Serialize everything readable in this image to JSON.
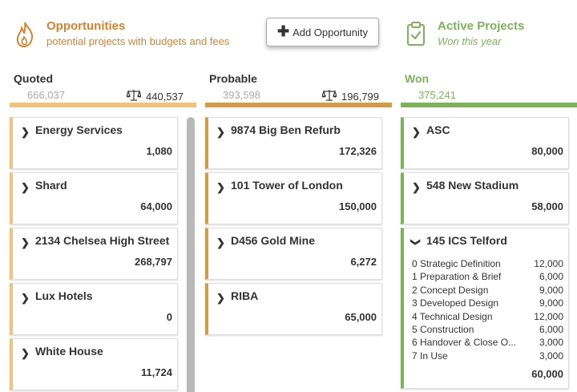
{
  "header": {
    "opportunities_title": "Opportunities",
    "opportunities_subtitle": "potential projects with budgets and fees",
    "add_button_label": "Add Opportunity",
    "active_title": "Active Projects",
    "active_subtitle": "Won this year"
  },
  "columns": {
    "quoted": {
      "name": "Quoted",
      "potential": "666,037",
      "total": "440,537",
      "color": "#f0c27a"
    },
    "probable": {
      "name": "Probable",
      "potential": "393,598",
      "total": "196,799",
      "color": "#d49a45"
    },
    "won": {
      "name": "Won",
      "total": "375,241",
      "color": "#7cb35a"
    }
  },
  "quoted_cards": [
    {
      "name": "Energy Services",
      "value": "1,080"
    },
    {
      "name": "Shard",
      "value": "64,000"
    },
    {
      "name": "2134 Chelsea High Street",
      "value": "268,797"
    },
    {
      "name": "Lux Hotels",
      "value": "0"
    },
    {
      "name": "White House",
      "value": "11,724"
    }
  ],
  "probable_cards": [
    {
      "name": "9874 Big Ben Refurb",
      "value": "172,326"
    },
    {
      "name": "101 Tower of London",
      "value": "150,000"
    },
    {
      "name": "D456 Gold Mine",
      "value": "6,272"
    },
    {
      "name": "RIBA",
      "value": "65,000"
    }
  ],
  "won_cards": [
    {
      "name": "ASC",
      "value": "80,000"
    },
    {
      "name": "548 New Stadium",
      "value": "58,000"
    },
    {
      "name": "145 ICS Telford",
      "value": "60,000",
      "stages": [
        {
          "name": "0 Strategic Definition",
          "value": "12,000"
        },
        {
          "name": "1 Preparation & Brief",
          "value": "6,000"
        },
        {
          "name": "2 Concept Design",
          "value": "9,000"
        },
        {
          "name": "3 Developed Design",
          "value": "9,000"
        },
        {
          "name": "4 Technical Design",
          "value": "12,000"
        },
        {
          "name": "5 Construction",
          "value": "6,000"
        },
        {
          "name": "6 Handover & Close O...",
          "value": "3,000"
        },
        {
          "name": "7 In Use",
          "value": "3,000"
        }
      ]
    }
  ],
  "icons": {
    "opportunities": "flame-icon",
    "active": "clipboard-check-icon",
    "totals": "scale-icon",
    "collapsed": "chevron-right-icon",
    "expanded": "chevron-down-icon"
  }
}
